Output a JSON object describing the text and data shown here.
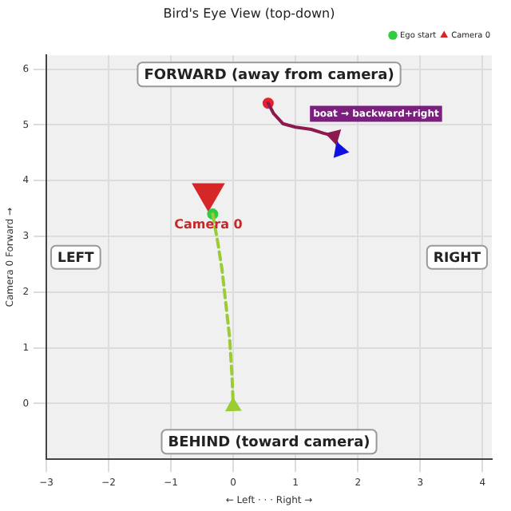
{
  "chart_data": {
    "type": "line",
    "title": "Bird's Eye View (top-down)",
    "xlabel": "← Left · · · Right →",
    "ylabel": "Camera 0 Forward →",
    "xlim": [
      -3,
      4.15
    ],
    "ylim": [
      -1,
      6.25
    ],
    "xticks": [
      -3,
      -2,
      -1,
      0,
      1,
      2,
      3,
      4
    ],
    "yticks": [
      0,
      1,
      2,
      3,
      4,
      5,
      6
    ],
    "grid": true,
    "legend": "top right",
    "series": [
      {
        "line_style": "dashed",
        "marker": "none",
        "color": "#9acd32",
        "x": [
          -0.33,
          -0.25,
          -0.18,
          -0.12,
          -0.06,
          -0.02,
          0.0
        ],
        "values": [
          3.4,
          2.9,
          2.4,
          1.8,
          1.2,
          0.5,
          -0.05
        ]
      },
      {
        "line_style": "solid",
        "marker": "none",
        "color": "#8b1a4f",
        "x": [
          0.56,
          0.65,
          0.8,
          1.0,
          1.25,
          1.45,
          1.62
        ],
        "values": [
          5.39,
          5.2,
          5.02,
          4.96,
          4.92,
          4.85,
          4.8
        ]
      },
      {
        "line_style": "solid",
        "marker": "none",
        "color": "#1010e0",
        "x": [
          1.62,
          1.66,
          1.71
        ],
        "values": [
          4.8,
          4.68,
          4.54
        ]
      },
      {
        "type": "scatter",
        "marker": "circle",
        "color": "#e8202a",
        "x": [
          0.56
        ],
        "values": [
          5.39
        ]
      },
      {
        "type": "scatter",
        "name": "Ego start",
        "marker": "circle",
        "color": "#2ecc40",
        "x": [
          -0.33
        ],
        "values": [
          3.4
        ]
      },
      {
        "type": "scatter",
        "name": "Camera 0",
        "marker": "triangle",
        "color": "#d62728",
        "x": [
          -0.4
        ],
        "values": [
          3.78
        ]
      }
    ],
    "annotations": [
      "FORWARD (away from camera)",
      "BEHIND (toward camera)",
      "LEFT",
      "RIGHT",
      {
        "text": "Camera 0",
        "x": -0.4,
        "y": 3.2
      },
      "boat → backward+right"
    ]
  }
}
